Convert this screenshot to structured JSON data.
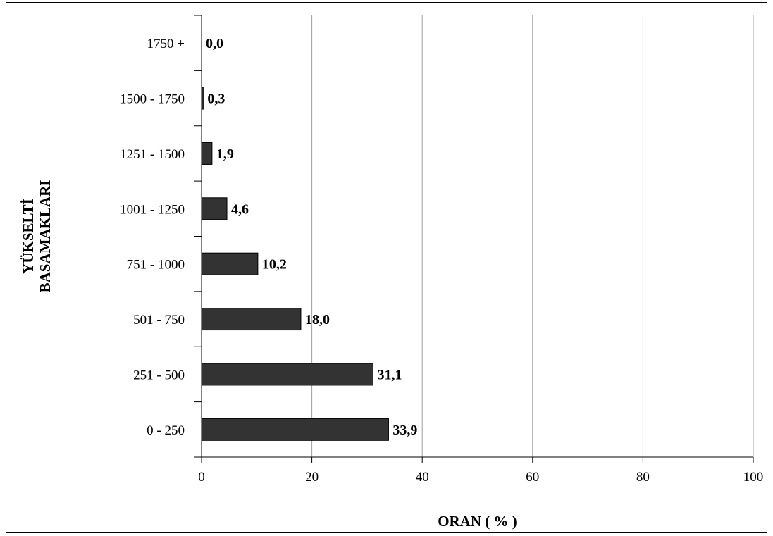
{
  "chart_data": {
    "type": "bar",
    "orientation": "horizontal",
    "categories": [
      "0 - 250",
      "251 - 500",
      "501 - 750",
      "751 - 1000",
      "1001 - 1250",
      "1251 - 1500",
      "1500 - 1750",
      "1750 +"
    ],
    "values": [
      33.9,
      31.1,
      18.0,
      10.2,
      4.6,
      1.9,
      0.3,
      0.0
    ],
    "data_labels": [
      "33,9",
      "31,1",
      "18,0",
      "10,2",
      "4,6",
      "1,9",
      "0,3",
      "0,0"
    ],
    "xlabel": "ORAN ( % )",
    "ylabel_lines": [
      "YÜKSELTİ",
      "BASAMAKLARI"
    ],
    "xlim": [
      0,
      100
    ],
    "xticks": [
      0,
      20,
      40,
      60,
      80,
      100
    ],
    "xtick_labels": [
      "0",
      "20",
      "40",
      "60",
      "80",
      "100"
    ],
    "grid": "vertical",
    "legend": "none",
    "bar_color": "#333333",
    "grid_color": "#a0a0a0"
  }
}
